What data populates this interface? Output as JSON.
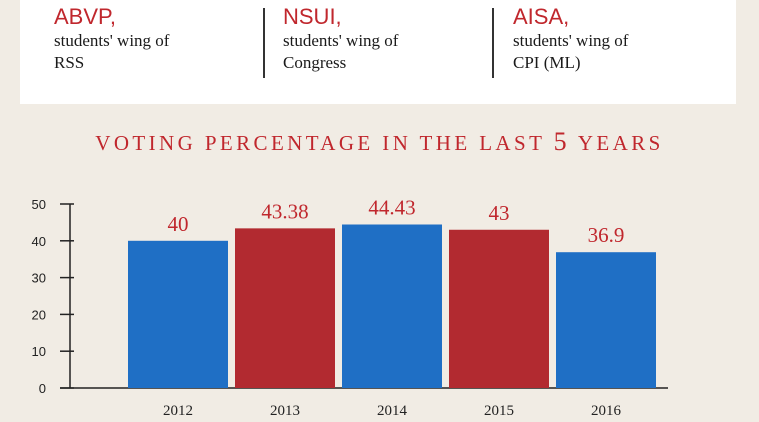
{
  "header": {
    "parties": [
      {
        "name": "ABVP,",
        "desc_line1": "students' wing of",
        "desc_line2": "RSS"
      },
      {
        "name": "NSUI,",
        "desc_line1": "students' wing of",
        "desc_line2": "Congress"
      },
      {
        "name": "AISA,",
        "desc_line1": "students' wing of",
        "desc_line2": "CPI (ML)"
      }
    ]
  },
  "heading": {
    "text_before": "VOTING PERCENTAGE IN THE LAST ",
    "number": "5",
    "text_after": " YEARS"
  },
  "colors": {
    "blue": "#1f6fc5",
    "red": "#b22a30",
    "accent_text": "#c0272d"
  },
  "chart_data": {
    "type": "bar",
    "title": "VOTING PERCENTAGE IN THE LAST 5 YEARS",
    "categories": [
      "2012",
      "2013",
      "2014",
      "2015",
      "2016"
    ],
    "values": [
      40,
      43.38,
      44.43,
      43,
      36.9
    ],
    "value_labels": [
      "40",
      "43.38",
      "44.43",
      "43",
      "36.9"
    ],
    "bar_colors": [
      "#1f6fc5",
      "#b22a30",
      "#1f6fc5",
      "#b22a30",
      "#1f6fc5"
    ],
    "ylim": [
      0,
      50
    ],
    "yticks": [
      0,
      10,
      20,
      30,
      40,
      50
    ],
    "xlabel": "",
    "ylabel": "",
    "grid": false,
    "legend": "none"
  }
}
